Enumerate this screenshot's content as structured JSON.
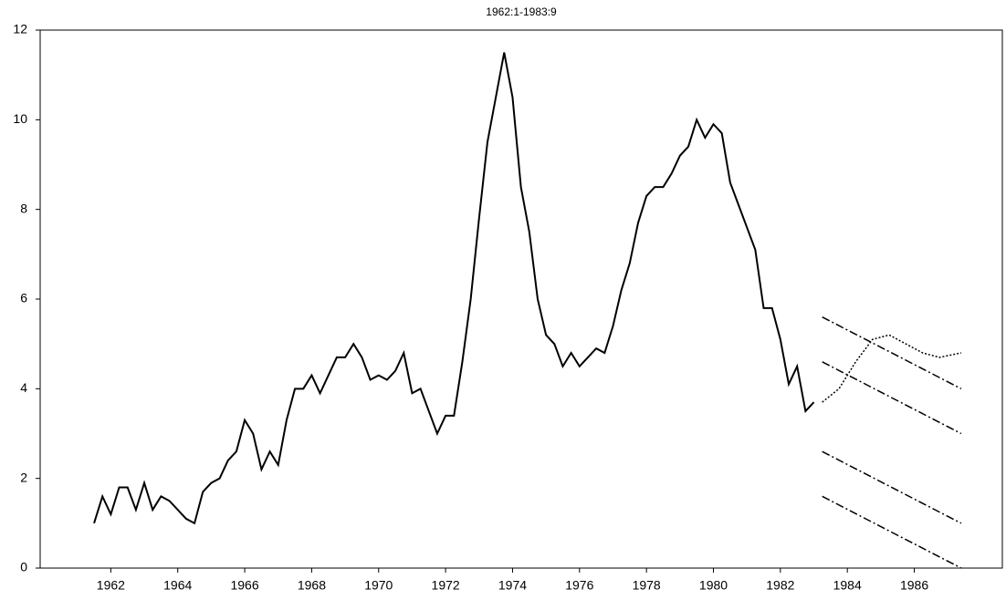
{
  "chart_data": {
    "type": "line",
    "title": "1962:1-1983:9",
    "xlim": [
      1960.39,
      1989.13
    ],
    "ylim": [
      0,
      12
    ],
    "yticks": [
      0,
      2,
      4,
      6,
      8,
      10,
      12
    ],
    "xticks": [
      {
        "value": 1962.5,
        "label": "1962"
      },
      {
        "value": 1964.5,
        "label": "1964"
      },
      {
        "value": 1966.5,
        "label": "1966"
      },
      {
        "value": 1968.5,
        "label": "1968"
      },
      {
        "value": 1970.5,
        "label": "1970"
      },
      {
        "value": 1972.5,
        "label": "1972"
      },
      {
        "value": 1974.5,
        "label": "1974"
      },
      {
        "value": 1976.5,
        "label": "1976"
      },
      {
        "value": 1978.5,
        "label": "1978"
      },
      {
        "value": 1980.5,
        "label": "1980"
      },
      {
        "value": 1982.5,
        "label": "1982"
      },
      {
        "value": 1984.5,
        "label": "1984"
      },
      {
        "value": 1986.5,
        "label": "1986"
      }
    ],
    "series": [
      {
        "color": "#000000",
        "style": "solid",
        "x": [
          1962,
          1962.25,
          1962.5,
          1962.75,
          1963,
          1963.25,
          1963.5,
          1963.75,
          1964,
          1964.25,
          1964.5,
          1964.75,
          1965,
          1965.25,
          1965.5,
          1965.75,
          1966,
          1966.25,
          1966.5,
          1966.75,
          1967,
          1967.25,
          1967.5,
          1967.75,
          1968,
          1968.25,
          1968.5,
          1968.75,
          1969,
          1969.25,
          1969.5,
          1969.75,
          1970,
          1970.25,
          1970.5,
          1970.75,
          1971,
          1971.25,
          1971.5,
          1971.75,
          1972,
          1972.25,
          1972.5,
          1972.75,
          1973,
          1973.25,
          1973.5,
          1973.75,
          1974,
          1974.25,
          1974.5,
          1974.75,
          1975,
          1975.25,
          1975.5,
          1975.75,
          1976,
          1976.25,
          1976.5,
          1976.75,
          1977,
          1977.25,
          1977.5,
          1977.75,
          1978,
          1978.25,
          1978.5,
          1978.75,
          1979,
          1979.25,
          1979.5,
          1979.75,
          1980,
          1980.25,
          1980.5,
          1980.75,
          1981,
          1981.25,
          1981.5,
          1981.75,
          1982,
          1982.25,
          1982.5,
          1982.75,
          1983,
          1983.25,
          1983.5
        ],
        "values": [
          1.0,
          1.6,
          1.2,
          1.8,
          1.8,
          1.3,
          1.9,
          1.3,
          1.6,
          1.5,
          1.3,
          1.1,
          1.0,
          1.7,
          1.9,
          2.0,
          2.4,
          2.6,
          3.3,
          3.0,
          2.2,
          2.6,
          2.3,
          3.3,
          4.0,
          4.0,
          4.3,
          3.9,
          4.3,
          4.7,
          4.7,
          5.0,
          4.7,
          4.2,
          4.3,
          4.2,
          4.4,
          4.8,
          3.9,
          4.0,
          3.5,
          3.0,
          3.4,
          3.4,
          4.6,
          6.0,
          7.8,
          9.5,
          10.5,
          11.5,
          10.5,
          8.5,
          7.5,
          6.0,
          5.2,
          5.0,
          4.5,
          4.8,
          4.5,
          4.7,
          4.9,
          4.8,
          5.4,
          6.2,
          6.8,
          7.7,
          8.3,
          8.5,
          8.5,
          8.8,
          9.2,
          9.4,
          10.0,
          9.6,
          9.9,
          9.7,
          8.6,
          8.1,
          7.6,
          7.1,
          5.8,
          5.8,
          5.1,
          4.1,
          4.5,
          3.5,
          3.7
        ]
      },
      {
        "color": "#000000",
        "style": "dotted",
        "x": [
          1983.75,
          1984.25,
          1984.75,
          1985.25,
          1985.75,
          1986.25,
          1986.75,
          1987.25,
          1987.9
        ],
        "values": [
          3.7,
          4.0,
          4.6,
          5.1,
          5.2,
          5.0,
          4.8,
          4.7,
          4.8
        ]
      },
      {
        "color": "#000000",
        "style": "dashdot",
        "x": [
          1983.75,
          1987.9
        ],
        "values": [
          5.6,
          4.0
        ]
      },
      {
        "color": "#000000",
        "style": "dashdot",
        "x": [
          1983.75,
          1987.9
        ],
        "values": [
          4.6,
          3.0
        ]
      },
      {
        "color": "#000000",
        "style": "dashdot",
        "x": [
          1983.75,
          1987.9
        ],
        "values": [
          2.6,
          1.0
        ]
      },
      {
        "color": "#000000",
        "style": "dashdot",
        "x": [
          1983.75,
          1987.9
        ],
        "values": [
          1.6,
          0
        ]
      }
    ]
  }
}
